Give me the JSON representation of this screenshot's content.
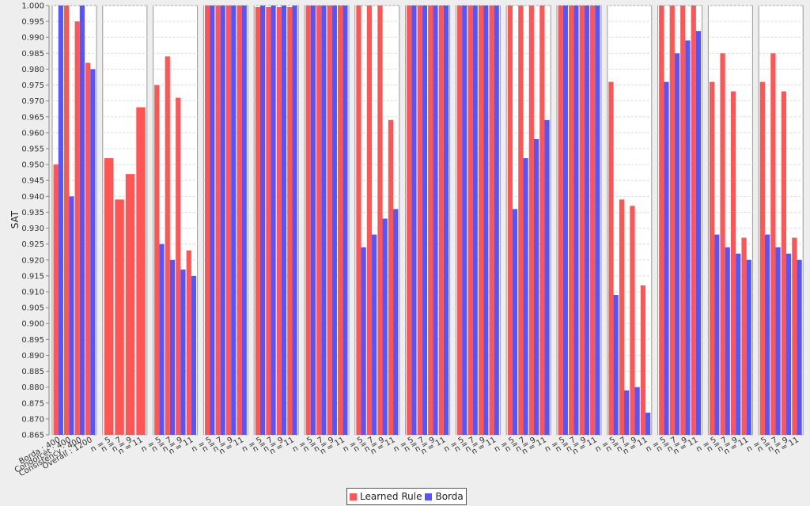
{
  "colors": {
    "learned": "#ff5555",
    "borda": "#5555ff"
  },
  "legend": {
    "learned": "Learned Rule",
    "borda": "Borda"
  },
  "chart_data": {
    "type": "bar",
    "ylabel": "SAT",
    "ylim": [
      0.865,
      1.0
    ],
    "yticks": [
      "0.865",
      "0.870",
      "0.875",
      "0.880",
      "0.885",
      "0.890",
      "0.895",
      "0.900",
      "0.905",
      "0.910",
      "0.915",
      "0.920",
      "0.925",
      "0.930",
      "0.935",
      "0.940",
      "0.945",
      "0.950",
      "0.955",
      "0.960",
      "0.965",
      "0.970",
      "0.975",
      "0.980",
      "0.985",
      "0.990",
      "0.995",
      "1.000"
    ],
    "grid": true,
    "legend_position": "bottom",
    "series": [
      {
        "name": "Learned Rule"
      },
      {
        "name": "Borda"
      }
    ],
    "panels": [
      {
        "categories": [
          "Borda : 400",
          "Condorcet : 400",
          "Consistency : 400",
          "Overall : 1200"
        ],
        "learned": [
          0.95,
          1.0,
          0.995,
          0.982
        ],
        "borda": [
          1.0,
          0.94,
          1.0,
          0.98
        ]
      },
      {
        "categories": [
          "n = 5",
          "n = 7",
          "n = 9",
          "n = 11"
        ],
        "learned": [
          0.952,
          0.939,
          0.947,
          0.968
        ],
        "borda": [
          null,
          null,
          null,
          null
        ]
      },
      {
        "categories": [
          "n = 5",
          "n = 7",
          "n = 9",
          "n = 11"
        ],
        "learned": [
          0.975,
          0.984,
          0.971,
          0.923
        ],
        "borda": [
          0.925,
          0.92,
          0.917,
          0.915
        ]
      },
      {
        "categories": [
          "n = 5",
          "n = 7",
          "n = 9",
          "n = 11"
        ],
        "learned": [
          1.0,
          1.0,
          1.0,
          1.0
        ],
        "borda": [
          1.0,
          1.0,
          1.0,
          1.0
        ]
      },
      {
        "categories": [
          "n = 5",
          "n = 7",
          "n = 9",
          "n = 11"
        ],
        "learned": [
          0.9995,
          0.9995,
          0.9995,
          0.9995
        ],
        "borda": [
          1.0,
          1.0,
          1.0,
          1.0
        ]
      },
      {
        "categories": [
          "n = 5",
          "n = 7",
          "n = 9",
          "n = 11"
        ],
        "learned": [
          1.0,
          1.0,
          1.0,
          1.0
        ],
        "borda": [
          1.0,
          1.0,
          1.0,
          1.0
        ]
      },
      {
        "categories": [
          "n = 5",
          "n = 7",
          "n = 9",
          "n = 11"
        ],
        "learned": [
          1.0,
          1.0,
          1.0,
          0.964
        ],
        "borda": [
          0.924,
          0.928,
          0.933,
          0.936
        ]
      },
      {
        "categories": [
          "n = 5",
          "n = 7",
          "n = 9",
          "n = 11"
        ],
        "learned": [
          1.0,
          1.0,
          1.0,
          1.0
        ],
        "borda": [
          1.0,
          1.0,
          1.0,
          1.0
        ]
      },
      {
        "categories": [
          "n = 5",
          "n = 7",
          "n = 9",
          "n = 11"
        ],
        "learned": [
          1.0,
          1.0,
          1.0,
          1.0
        ],
        "borda": [
          1.0,
          1.0,
          1.0,
          1.0
        ]
      },
      {
        "categories": [
          "n = 5",
          "n = 7",
          "n = 9",
          "n = 11"
        ],
        "learned": [
          1.0,
          1.0,
          1.0,
          1.0
        ],
        "borda": [
          0.936,
          0.952,
          0.958,
          0.964
        ]
      },
      {
        "categories": [
          "n = 5",
          "n = 7",
          "n = 9",
          "n = 11"
        ],
        "learned": [
          1.0,
          1.0,
          1.0,
          1.0
        ],
        "borda": [
          1.0,
          1.0,
          1.0,
          1.0
        ]
      },
      {
        "categories": [
          "n = 5",
          "n = 7",
          "n = 9",
          "n = 11"
        ],
        "learned": [
          0.976,
          0.939,
          0.937,
          0.912
        ],
        "borda": [
          0.909,
          0.879,
          0.88,
          0.872
        ]
      },
      {
        "categories": [
          "n = 5",
          "n = 7",
          "n = 9",
          "n = 11"
        ],
        "learned": [
          1.0,
          1.0,
          1.0,
          1.0
        ],
        "borda": [
          0.976,
          0.985,
          0.989,
          0.992
        ]
      },
      {
        "categories": [
          "n = 5",
          "n = 7",
          "n = 9",
          "n = 11"
        ],
        "learned": [
          0.976,
          0.985,
          0.973,
          0.927
        ],
        "borda": [
          0.928,
          0.924,
          0.922,
          0.92
        ]
      },
      {
        "categories": [
          "n = 5",
          "n = 7",
          "n = 9",
          "n = 11"
        ],
        "learned": [
          0.976,
          0.985,
          0.973,
          0.927
        ],
        "borda": [
          0.928,
          0.924,
          0.922,
          0.92
        ]
      }
    ]
  }
}
